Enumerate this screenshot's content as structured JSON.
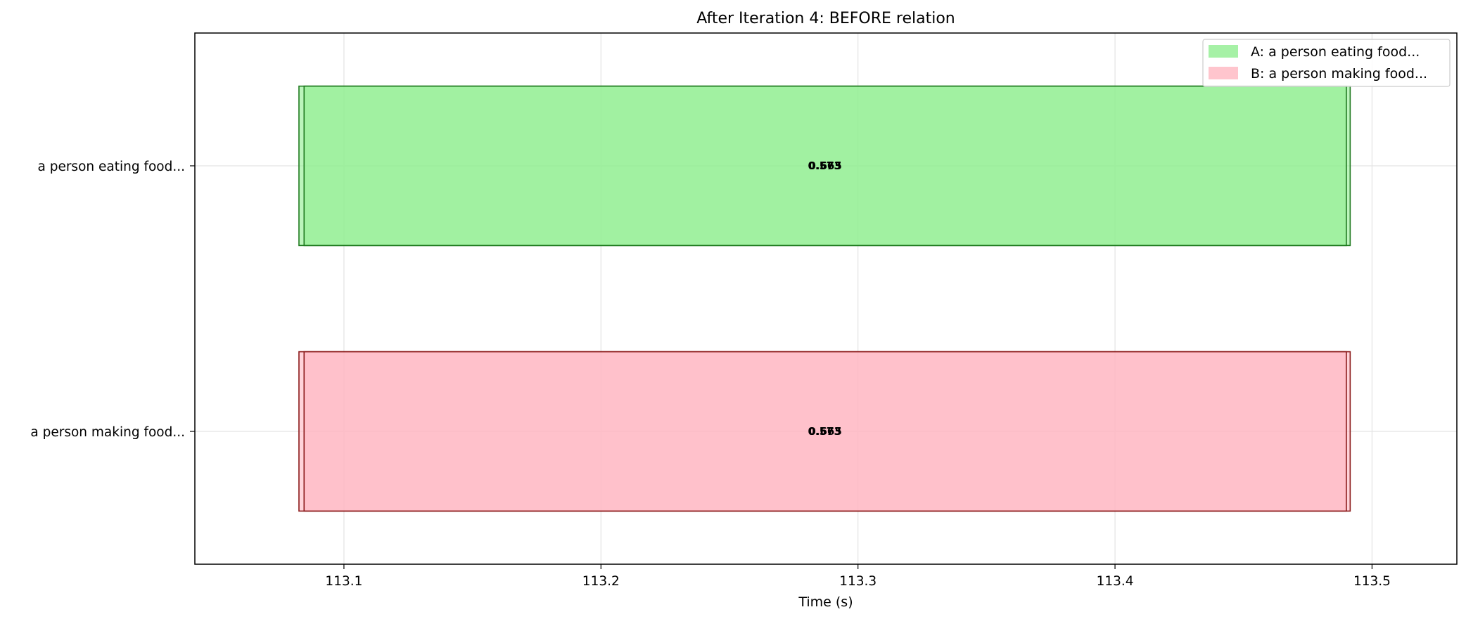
{
  "chart_data": {
    "type": "bar",
    "orientation": "horizontal",
    "title": "After Iteration 4: BEFORE relation",
    "xlabel": "Time (s)",
    "ylabel": "",
    "xlim": [
      113.042,
      113.533
    ],
    "x_ticks": [
      "113.1",
      "113.2",
      "113.3",
      "113.4",
      "113.5"
    ],
    "grid": true,
    "legend_position": "top-right",
    "categories": [
      "a person eating food...",
      "a person making food..."
    ],
    "series": [
      {
        "name": "A: a person eating food...",
        "category": "a person eating food...",
        "color": "#90ee90",
        "edge_color": "#1f7a1f",
        "segments": [
          {
            "start": 113.0825,
            "end": 113.4915,
            "label": "0.573"
          },
          {
            "start": 113.0845,
            "end": 113.49,
            "label": "0.665"
          }
        ]
      },
      {
        "name": "B: a person making food...",
        "category": "a person making food...",
        "color": "#ffb6c1",
        "edge_color": "#8b1a1a",
        "segments": [
          {
            "start": 113.0825,
            "end": 113.4915,
            "label": "0.573"
          },
          {
            "start": 113.0845,
            "end": 113.49,
            "label": "0.665"
          }
        ]
      }
    ]
  }
}
